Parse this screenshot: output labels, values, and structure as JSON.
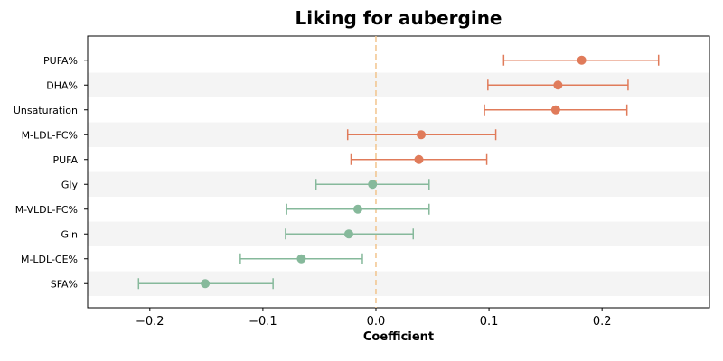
{
  "chart_data": {
    "type": "forest",
    "title": "Liking for aubergine",
    "xlabel": "Coefficient",
    "ylabel": "",
    "xlim": [
      -0.255,
      0.295
    ],
    "xticks": [
      -0.2,
      -0.1,
      0.0,
      0.1,
      0.2
    ],
    "xtick_labels": [
      "−0.2",
      "−0.1",
      "0.0",
      "0.1",
      "0.2"
    ],
    "reference_line": 0.0,
    "colors": {
      "positive": "#e07b5a",
      "negative": "#86b99b",
      "reference": "#f2c48d",
      "band": "#f4f4f4"
    },
    "points": [
      {
        "label": "PUFA%",
        "coef": 0.182,
        "low": 0.113,
        "high": 0.25
      },
      {
        "label": "DHA%",
        "coef": 0.161,
        "low": 0.099,
        "high": 0.223
      },
      {
        "label": "Unsaturation",
        "coef": 0.159,
        "low": 0.096,
        "high": 0.222
      },
      {
        "label": "M-LDL-FC%",
        "coef": 0.04,
        "low": -0.025,
        "high": 0.106
      },
      {
        "label": "PUFA",
        "coef": 0.038,
        "low": -0.022,
        "high": 0.098
      },
      {
        "label": "Gly",
        "coef": -0.003,
        "low": -0.053,
        "high": 0.047
      },
      {
        "label": "M-VLDL-FC%",
        "coef": -0.016,
        "low": -0.079,
        "high": 0.047
      },
      {
        "label": "Gln",
        "coef": -0.024,
        "low": -0.08,
        "high": 0.033
      },
      {
        "label": "M-LDL-CE%",
        "coef": -0.066,
        "low": -0.12,
        "high": -0.012
      },
      {
        "label": "SFA%",
        "coef": -0.151,
        "low": -0.21,
        "high": -0.091
      }
    ]
  }
}
